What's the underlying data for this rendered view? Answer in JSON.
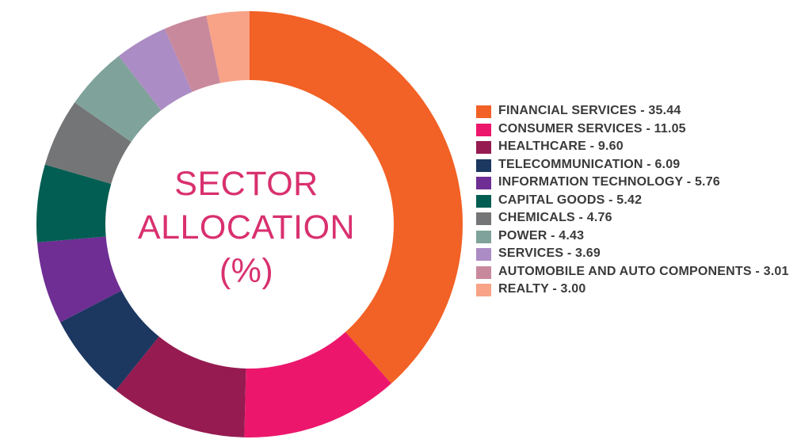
{
  "chart_data": {
    "type": "pie",
    "title_lines": [
      "SECTOR",
      "ALLOCATION",
      "(%)"
    ],
    "donut": true,
    "legend_position": "right",
    "slices": [
      {
        "name": "FINANCIAL SERVICES",
        "value": 35.44,
        "label": "FINANCIAL SERVICES - 35.44",
        "color": "#f26125"
      },
      {
        "name": "CONSUMER SERVICES",
        "value": 11.05,
        "label": "CONSUMER SERVICES - 11.05",
        "color": "#ec176c"
      },
      {
        "name": "HEALTHCARE",
        "value": 9.6,
        "label": "HEALTHCARE - 9.60",
        "color": "#951b50"
      },
      {
        "name": "TELECOMMUNICATION",
        "value": 6.09,
        "label": "TELECOMMUNICATION - 6.09",
        "color": "#1c3760"
      },
      {
        "name": "INFORMATION TECHNOLOGY",
        "value": 5.76,
        "label": "INFORMATION TECHNOLOGY - 5.76",
        "color": "#6e2e93"
      },
      {
        "name": "CAPITAL GOODS",
        "value": 5.42,
        "label": "CAPITAL GOODS - 5.42",
        "color": "#025e52"
      },
      {
        "name": "CHEMICALS",
        "value": 4.76,
        "label": "CHEMICALS - 4.76",
        "color": "#747576"
      },
      {
        "name": "POWER",
        "value": 4.43,
        "label": "POWER - 4.43",
        "color": "#7fa39a"
      },
      {
        "name": "SERVICES",
        "value": 3.69,
        "label": "SERVICES - 3.69",
        "color": "#ac8cc4"
      },
      {
        "name": "AUTOMOBILE AND AUTO COMPONENTS",
        "value": 3.01,
        "label": "AUTOMOBILE AND AUTO COMPONENTS - 3.01",
        "color": "#c9899d"
      },
      {
        "name": "REALTY",
        "value": 3.0,
        "label": "REALTY - 3.00",
        "color": "#f8a387"
      }
    ]
  }
}
